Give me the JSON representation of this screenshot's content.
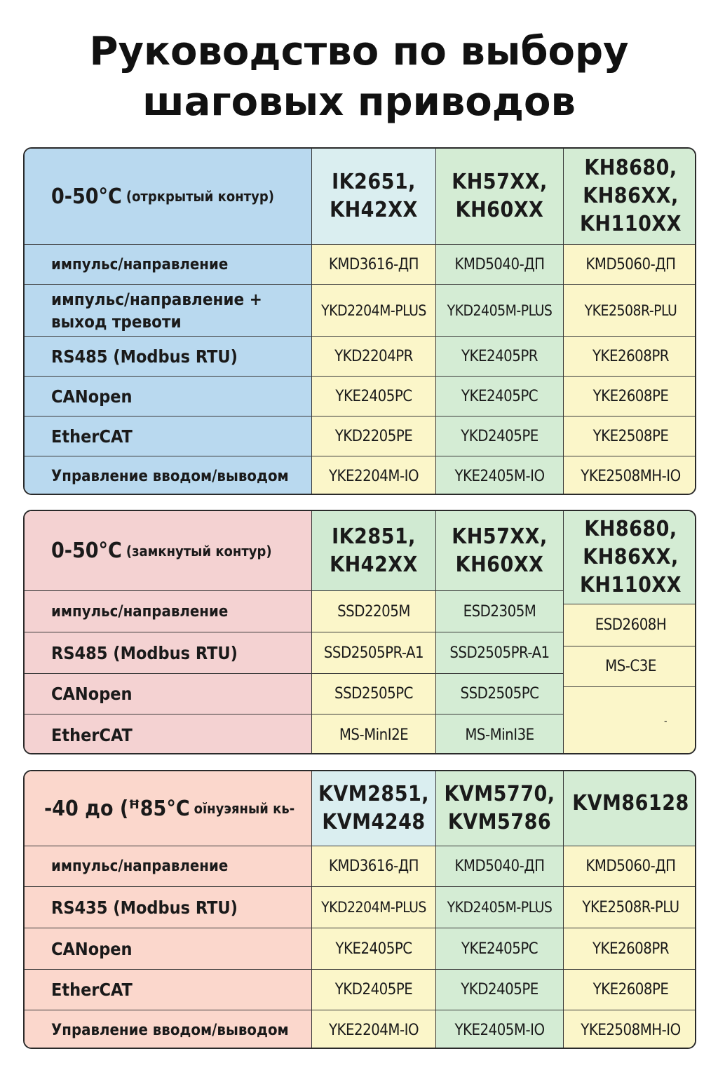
{
  "title": {
    "line1": "Руководство по выбору",
    "line2": "шаговых приводов"
  },
  "panel1": {
    "header": {
      "temp": "0-50°C",
      "mode": "(отркрытый контур)",
      "col1": "IK2651, KH42XX",
      "col2": "KH57XX, KH60XX",
      "col3": "KH8680, KH86XX, KH110XX"
    },
    "rows": [
      {
        "label": "импульс/направление",
        "c1": "KMD3616-ДП",
        "c2": "KMD5040-ДП",
        "c3": "KMD5060-ДП"
      },
      {
        "label": "импульс/направление + выход тревоти",
        "c1": "YKD2204M-PLUS",
        "c2": "YKD2405M-PLUS",
        "c3": "YKE2508R-PLU"
      },
      {
        "label": "RS485 (Modbus RTU)",
        "c1": "YKD2204PR",
        "c2": "YKE2405PR",
        "c3": "YKE2608PR"
      },
      {
        "label": "CANopen",
        "c1": "YKE2405PC",
        "c2": "YKE2405PC",
        "c3": "YKE2608PE"
      },
      {
        "label": "EtherCAT",
        "c1": "YKD2205PE",
        "c2": "YKD2405PE",
        "c3": "YKE2508PE"
      },
      {
        "label": "Управление вводом/выводом",
        "c1": "YKE2204M-IO",
        "c2": "YKE2405M-IO",
        "c3": "YKE2508MH-IO"
      }
    ]
  },
  "panel2": {
    "header": {
      "temp": "0-50°C",
      "mode": "(замкнутый контур)",
      "col1": "IK2851, KH42XX",
      "col2": "KH57XX, KH60XX",
      "col3": "KH8680, KH86XX, KH110XX"
    },
    "rows": [
      {
        "label": "импульс/направление",
        "c1": "SSD2205M",
        "c2": "ESD2305M"
      },
      {
        "label": "RS485 (Modbus RTU)",
        "c1": "SSD2505PR-A1",
        "c2": "SSD2505PR-A1"
      },
      {
        "label": "CANopen",
        "c1": "SSD2505PC",
        "c2": "SSD2505PC"
      },
      {
        "label": "EtherCAT",
        "c1": "MS-MinI2E",
        "c2": "MS-MinI3E"
      }
    ],
    "col3_cells": [
      "ESD2608H",
      "MS-C3E",
      "-"
    ]
  },
  "panel3": {
    "header": {
      "temp": "-40 до (ꟸ85°C",
      "mode": "оі̆нуэяный кь-",
      "col1": "KVM2851, KVM4248",
      "col2": "KVM5770, KVM5786",
      "col3": "KVM86128"
    },
    "rows": [
      {
        "label": "импульс/направление",
        "c1": "KMD3616-ДП",
        "c2": "KMD5040-ДП",
        "c3": "KMD5060-ДП"
      },
      {
        "label": "RS435 (Modbus RTU)",
        "c1": "YKD2204M-PLUS",
        "c2": "YKD2405M-PLUS",
        "c3": "YKE2508R-PLU"
      },
      {
        "label": "CANopen",
        "c1": "YKE2405PC",
        "c2": "YKE2405PC",
        "c3": "YKE2608PR"
      },
      {
        "label": "EtherCAT",
        "c1": "YKD2405PE",
        "c2": "YKD2405PE",
        "c3": "YKE2608PE"
      },
      {
        "label": "Управление вводом/выводом",
        "c1": "YKE2204M-IO",
        "c2": "YKE2405M-IO",
        "c3": "YKE2508MH-IO"
      }
    ]
  },
  "colors": {
    "blue_label": "#b9d9ef",
    "pink_label": "#f4d2d2",
    "salmon_label": "#fbd7cc",
    "yellow_cell": "#fbf6c9",
    "green_cell": "#d4ecd4"
  }
}
